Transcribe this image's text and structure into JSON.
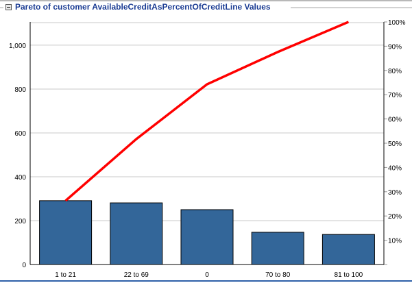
{
  "header": {
    "title": "Pareto of customer AvailableCreditAsPercentOfCreditLine Values",
    "collapse_icon": "minus-box-icon"
  },
  "chart_data": {
    "type": "bar",
    "title": "Pareto of customer AvailableCreditAsPercentOfCreditLine Values",
    "categories": [
      "1 to 21",
      "22 to 69",
      "0",
      "70 to 80",
      "81 to 100"
    ],
    "values": [
      291,
      281,
      250,
      147,
      137
    ],
    "cumulative_percent": [
      26.3,
      51.7,
      74.3,
      87.6,
      100
    ],
    "ylim": [
      0,
      1106
    ],
    "y2lim": [
      0,
      100
    ],
    "yticks": [
      0,
      200,
      400,
      600,
      800,
      1000
    ],
    "ytick_labels": [
      "0",
      "200",
      "400",
      "600",
      "800",
      "1,000"
    ],
    "y2ticks": [
      10,
      20,
      30,
      40,
      50,
      60,
      70,
      80,
      90,
      100
    ],
    "y2tick_labels": [
      "10%",
      "20%",
      "30%",
      "40%",
      "50%",
      "60%",
      "70%",
      "80%",
      "90%",
      "100%"
    ],
    "grid": true,
    "colors": {
      "bar": "#336699",
      "line": "#ff0000",
      "grid": "#c8c8c8"
    }
  }
}
